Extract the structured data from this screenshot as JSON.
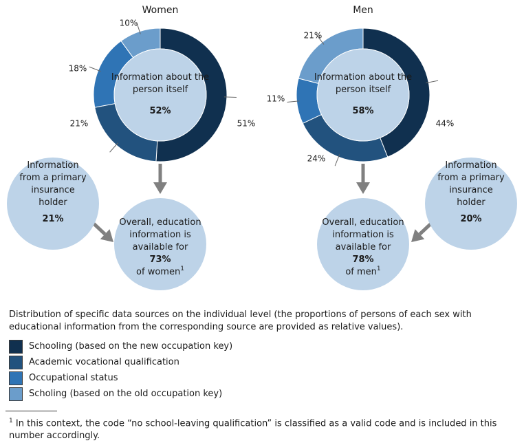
{
  "colors": {
    "schooling_new": "#10304f",
    "academic": "#22527e",
    "occupational": "#2f74b5",
    "schooling_old": "#6b9dcb",
    "bubble": "#bdd3e8",
    "arrow": "#808080"
  },
  "chart_data": [
    {
      "type": "pie",
      "title": "Women",
      "center_label": "Information about the person itself",
      "center_value": "52%",
      "slices": [
        {
          "name": "Schooling (based on the new occupation key)",
          "value": 51,
          "label": "51%",
          "color": "#10304f"
        },
        {
          "name": "Academic vocational qualification",
          "value": 21,
          "label": "21%",
          "color": "#22527e"
        },
        {
          "name": "Occupational status",
          "value": 18,
          "label": "18%",
          "color": "#2f74b5"
        },
        {
          "name": "Scholing (based on the old occupation key)",
          "value": 10,
          "label": "10%",
          "color": "#6b9dcb"
        }
      ]
    },
    {
      "type": "pie",
      "title": "Men",
      "center_label": "Information about the person itself",
      "center_value": "58%",
      "slices": [
        {
          "name": "Schooling (based on the new occupation key)",
          "value": 44,
          "label": "44%",
          "color": "#10304f"
        },
        {
          "name": "Academic vocational qualification",
          "value": 24,
          "label": "24%",
          "color": "#22527e"
        },
        {
          "name": "Occupational status",
          "value": 11,
          "label": "11%",
          "color": "#2f74b5"
        },
        {
          "name": "Scholing (based on the old occupation key)",
          "value": 21,
          "label": "21%",
          "color": "#6b9dcb"
        }
      ]
    }
  ],
  "women": {
    "insurance_text": "Information from a primary insurance holder",
    "insurance_value": "21%",
    "overall_prefix": "Overall, education information is available for",
    "overall_value": "73%",
    "overall_suffix": "of women",
    "overall_sup": "1"
  },
  "men": {
    "insurance_text": "Information from a primary insurance holder",
    "insurance_value": "20%",
    "overall_prefix": "Overall, education information is available for",
    "overall_value": "78%",
    "overall_suffix": "of men",
    "overall_sup": "1"
  },
  "caption": "Distribution of specific data sources on the individual level (the proportions of persons of each sex with educational information from the corresponding source are provided as relative values).",
  "legend": [
    {
      "label": "Schooling (based on the new occupation key)",
      "color": "#10304f"
    },
    {
      "label": "Academic vocational qualification",
      "color": "#22527e"
    },
    {
      "label": "Occupational status",
      "color": "#2f74b5"
    },
    {
      "label": "Scholing (based on the old occupation key)",
      "color": "#6b9dcb"
    }
  ],
  "footnote": {
    "marker": "1",
    "text": "In this context, the code “no school-leaving qualification” is classified as a valid code and is included in this number accordingly."
  }
}
